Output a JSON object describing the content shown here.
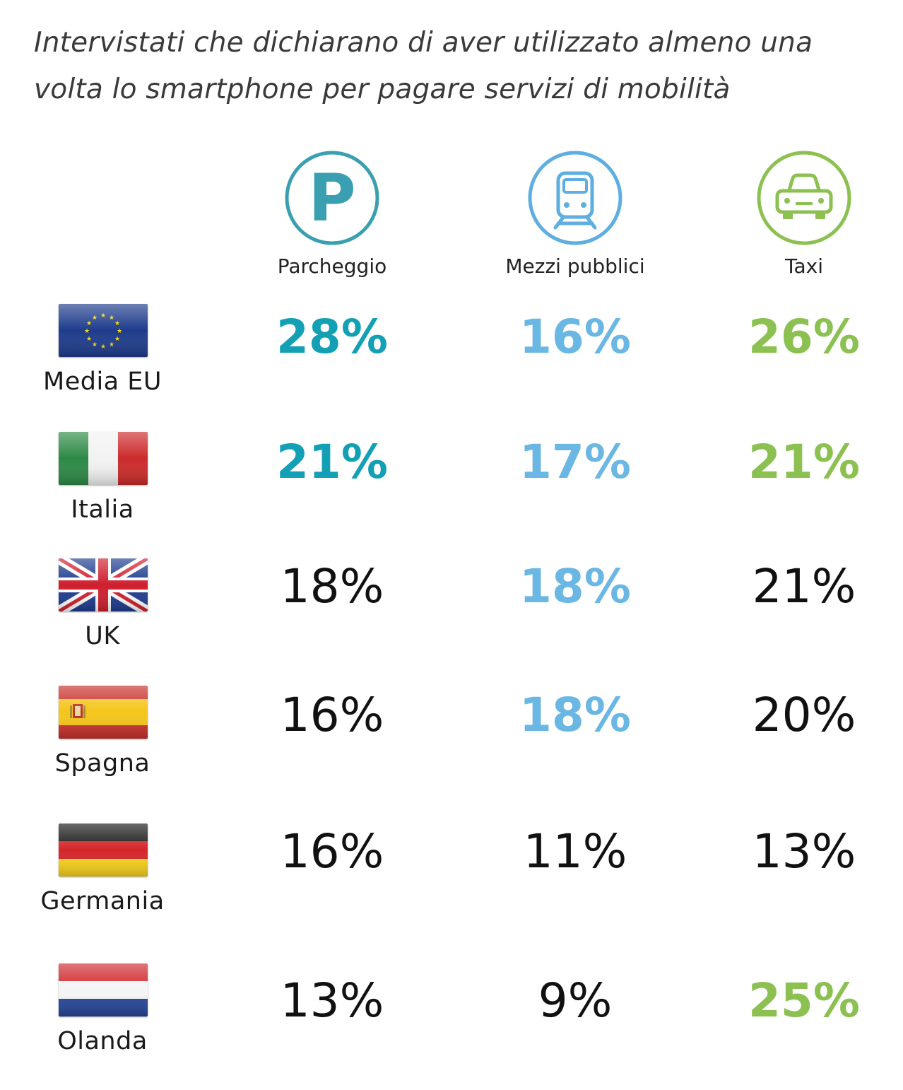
{
  "chart_data": {
    "type": "table",
    "title": "Intervistati che dichiarano di aver utilizzato almeno una volta lo smartphone per pagare servizi di mobilità",
    "columns": [
      {
        "label": "Parcheggio",
        "icon": "parking-icon",
        "color": "#14a0b4"
      },
      {
        "label": "Mezzi pubblici",
        "icon": "train-icon",
        "color": "#6ab7e3"
      },
      {
        "label": "Taxi",
        "icon": "taxi-icon",
        "color": "#8cc152"
      }
    ],
    "rows": [
      {
        "label": "Media EU",
        "flag": "eu-flag-icon",
        "values": [
          "28%",
          "16%",
          "26%"
        ],
        "highlight": [
          true,
          true,
          true
        ]
      },
      {
        "label": "Italia",
        "flag": "italy-flag-icon",
        "values": [
          "21%",
          "17%",
          "21%"
        ],
        "highlight": [
          true,
          true,
          true
        ]
      },
      {
        "label": "UK",
        "flag": "uk-flag-icon",
        "values": [
          "18%",
          "18%",
          "21%"
        ],
        "highlight": [
          false,
          true,
          false
        ]
      },
      {
        "label": "Spagna",
        "flag": "spain-flag-icon",
        "values": [
          "16%",
          "18%",
          "20%"
        ],
        "highlight": [
          false,
          true,
          false
        ]
      },
      {
        "label": "Germania",
        "flag": "germany-flag-icon",
        "values": [
          "16%",
          "11%",
          "13%"
        ],
        "highlight": [
          false,
          false,
          false
        ]
      },
      {
        "label": "Olanda",
        "flag": "netherlands-flag-icon",
        "values": [
          "13%",
          "9%",
          "25%"
        ],
        "highlight": [
          false,
          false,
          true
        ]
      }
    ]
  }
}
